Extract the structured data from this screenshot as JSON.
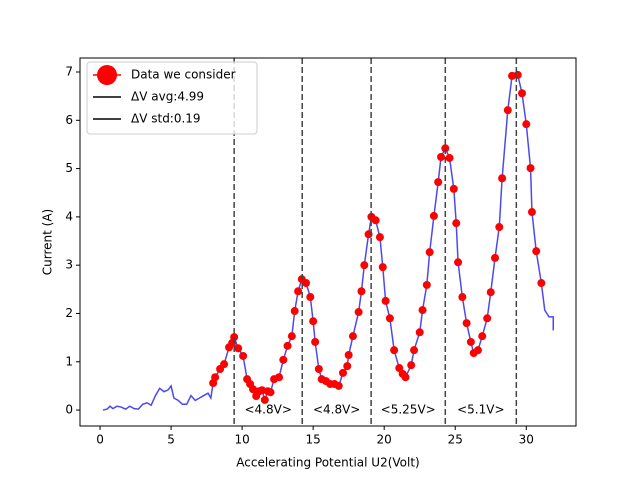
{
  "chart_data": {
    "type": "line",
    "xlabel": "Accelerating Potential U2(Volt)",
    "ylabel": "Current (A)",
    "xlim": [
      -1.41,
      33.5
    ],
    "ylim": [
      -0.33,
      7.29
    ],
    "xticks": [
      0,
      5,
      10,
      15,
      20,
      25,
      30
    ],
    "yticks": [
      0,
      1,
      2,
      3,
      4,
      5,
      6,
      7
    ],
    "series": [
      {
        "color": "#4a4aee",
        "x": [
          0.2,
          0.5,
          0.7,
          0.9,
          1.2,
          1.5,
          1.8,
          2.1,
          2.4,
          2.7,
          3.0,
          3.3,
          3.6,
          3.9,
          4.2,
          4.5,
          4.8,
          5.0,
          5.2,
          5.5,
          5.8,
          6.1,
          6.4,
          6.7,
          7.0,
          7.3,
          7.6,
          7.8,
          7.96,
          8.1,
          8.45,
          8.73,
          9.08,
          9.3,
          9.44,
          9.72,
          10.07,
          10.35,
          10.56,
          10.77,
          10.99,
          11.2,
          11.4,
          11.6,
          11.8,
          12.0,
          12.25,
          12.6,
          12.9,
          13.2,
          13.5,
          13.7,
          13.94,
          14.2,
          14.5,
          14.8,
          15.0,
          15.14,
          15.4,
          15.6,
          15.9,
          16.2,
          16.5,
          16.8,
          17.1,
          17.4,
          17.5,
          17.8,
          18.2,
          18.4,
          18.6,
          18.9,
          19.1,
          19.4,
          19.7,
          19.9,
          20.1,
          20.4,
          20.7,
          21.06,
          21.3,
          21.5,
          21.9,
          22.1,
          22.5,
          22.7,
          23.0,
          23.2,
          23.5,
          23.8,
          24.0,
          24.3,
          24.6,
          24.9,
          25.07,
          25.2,
          25.5,
          25.8,
          26.1,
          26.3,
          26.6,
          26.9,
          27.25,
          27.5,
          27.8,
          28.1,
          28.3,
          28.7,
          29.0,
          29.4,
          29.7,
          30.0,
          30.3,
          30.4,
          30.7,
          31.06,
          31.3,
          31.6,
          31.9,
          31.9
        ],
        "values": [
          0.0,
          0.02,
          0.08,
          0.03,
          0.08,
          0.06,
          0.02,
          0.08,
          0.03,
          0.02,
          0.12,
          0.15,
          0.1,
          0.3,
          0.45,
          0.38,
          0.42,
          0.5,
          0.25,
          0.2,
          0.12,
          0.12,
          0.3,
          0.2,
          0.25,
          0.3,
          0.35,
          0.25,
          0.56,
          0.68,
          0.85,
          0.95,
          1.3,
          1.39,
          1.51,
          1.28,
          1.12,
          0.64,
          0.54,
          0.43,
          0.29,
          0.39,
          0.41,
          0.21,
          0.39,
          0.37,
          0.64,
          0.68,
          1.04,
          1.33,
          1.53,
          2.05,
          2.46,
          2.71,
          2.63,
          2.34,
          1.84,
          1.41,
          0.85,
          0.64,
          0.6,
          0.54,
          0.54,
          0.5,
          0.77,
          0.91,
          1.14,
          1.53,
          2.03,
          2.46,
          3.0,
          3.64,
          4.0,
          3.93,
          3.58,
          2.96,
          2.26,
          1.9,
          1.24,
          0.87,
          0.75,
          0.68,
          0.93,
          1.24,
          1.61,
          2.07,
          2.59,
          3.27,
          4.02,
          4.72,
          5.24,
          5.42,
          5.22,
          4.58,
          3.87,
          3.06,
          2.34,
          1.8,
          1.41,
          1.18,
          1.24,
          1.53,
          1.9,
          2.44,
          3.15,
          3.79,
          4.8,
          6.21,
          6.92,
          6.94,
          6.56,
          5.92,
          5.01,
          4.1,
          3.29,
          2.63,
          2.07,
          1.93,
          1.93,
          1.65
        ]
      },
      {
        "name": "Data we consider",
        "color": "#ff0000",
        "marker": "o",
        "x": [
          7.96,
          8.1,
          8.45,
          8.73,
          9.08,
          9.3,
          9.44,
          9.72,
          10.07,
          10.35,
          10.56,
          10.77,
          10.99,
          11.2,
          11.4,
          11.6,
          11.8,
          12.0,
          12.25,
          12.6,
          12.9,
          13.2,
          13.5,
          13.7,
          13.94,
          14.2,
          14.5,
          14.8,
          15.0,
          15.14,
          15.4,
          15.6,
          15.9,
          16.2,
          16.5,
          16.8,
          17.1,
          17.4,
          17.5,
          17.8,
          18.2,
          18.4,
          18.6,
          18.9,
          19.1,
          19.4,
          19.7,
          19.9,
          20.1,
          20.4,
          20.7,
          21.06,
          21.3,
          21.5,
          21.9,
          22.1,
          22.5,
          22.7,
          23.0,
          23.2,
          23.5,
          23.8,
          24.0,
          24.3,
          24.6,
          24.9,
          25.07,
          25.2,
          25.5,
          25.8,
          26.1,
          26.3,
          26.6,
          26.9,
          27.25,
          27.5,
          27.8,
          28.1,
          28.3,
          28.7,
          29.0,
          29.4,
          29.7,
          30.0,
          30.3,
          30.4,
          30.7,
          31.06
        ],
        "values": [
          0.56,
          0.68,
          0.85,
          0.95,
          1.3,
          1.39,
          1.51,
          1.28,
          1.12,
          0.64,
          0.54,
          0.43,
          0.29,
          0.39,
          0.41,
          0.21,
          0.39,
          0.37,
          0.64,
          0.68,
          1.04,
          1.33,
          1.53,
          2.05,
          2.46,
          2.71,
          2.63,
          2.34,
          1.84,
          1.41,
          0.85,
          0.64,
          0.6,
          0.54,
          0.54,
          0.5,
          0.77,
          0.91,
          1.14,
          1.53,
          2.03,
          2.46,
          3.0,
          3.64,
          4.0,
          3.93,
          3.58,
          2.96,
          2.26,
          1.9,
          1.24,
          0.87,
          0.75,
          0.68,
          0.93,
          1.24,
          1.61,
          2.07,
          2.59,
          3.27,
          4.02,
          4.72,
          5.24,
          5.42,
          5.22,
          4.58,
          3.87,
          3.06,
          2.34,
          1.8,
          1.41,
          1.18,
          1.24,
          1.53,
          1.9,
          2.44,
          3.15,
          3.79,
          4.8,
          6.21,
          6.92,
          6.94,
          6.56,
          5.92,
          5.01,
          4.1,
          3.29,
          2.63
        ]
      }
    ],
    "vlines": {
      "color": "#444444",
      "style": "dashed",
      "x": [
        9.44,
        14.23,
        19.08,
        24.3,
        29.3
      ]
    },
    "annotations": [
      "<4.8V>",
      "<4.8V>",
      "<5.25V>",
      "<5.1V>"
    ],
    "legend": {
      "loc": "upper left",
      "extra": [
        {
          "label": "ΔV avg:4.99",
          "color": "#000000"
        },
        {
          "label": "ΔV std:0.19",
          "color": "#000000"
        }
      ]
    }
  }
}
